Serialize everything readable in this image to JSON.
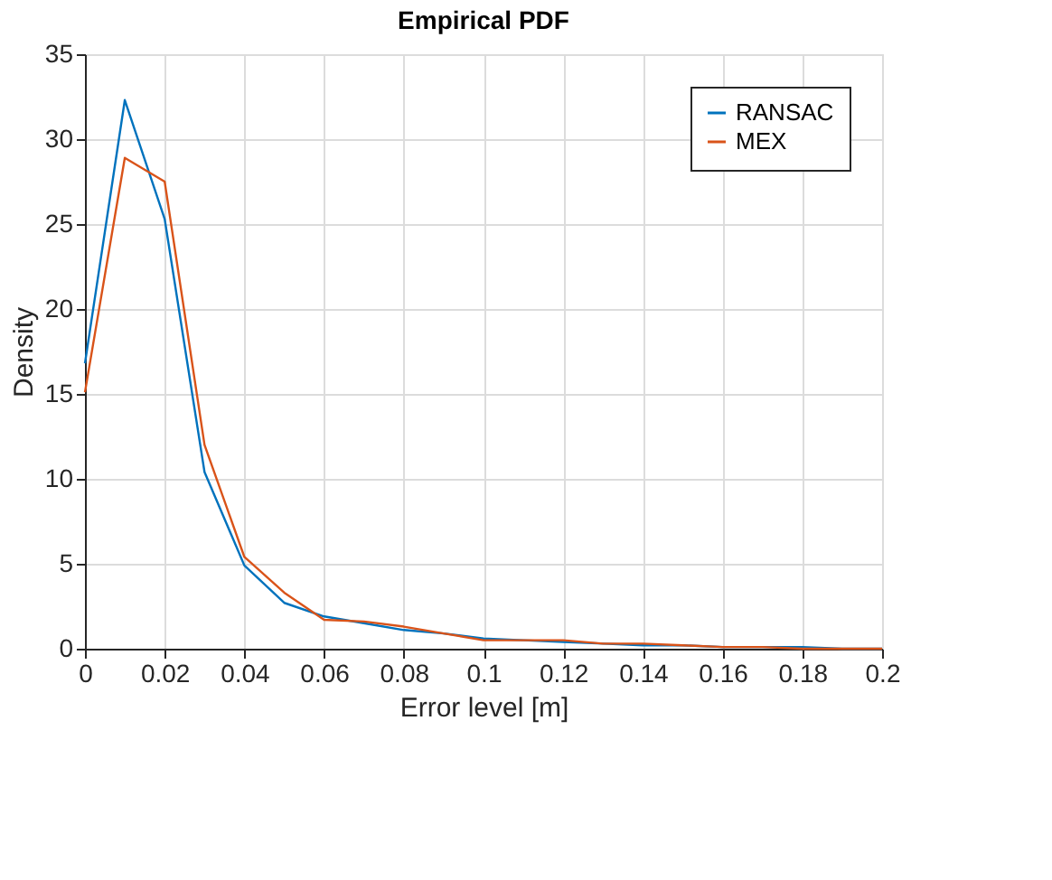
{
  "chart_data": {
    "type": "line",
    "title": "Empirical PDF",
    "xlabel": "Error level [m]",
    "ylabel": "Density",
    "x": [
      0,
      0.01,
      0.02,
      0.03,
      0.04,
      0.05,
      0.06,
      0.07,
      0.08,
      0.09,
      0.1,
      0.11,
      0.12,
      0.13,
      0.14,
      0.15,
      0.16,
      0.17,
      0.18,
      0.19,
      0.2
    ],
    "series": [
      {
        "name": "RANSAC",
        "color": "#0072bd",
        "values": [
          16.8,
          32.3,
          25.3,
          10.4,
          4.9,
          2.7,
          1.9,
          1.5,
          1.1,
          0.9,
          0.6,
          0.5,
          0.4,
          0.3,
          0.2,
          0.2,
          0.1,
          0.1,
          0.1,
          0,
          0
        ]
      },
      {
        "name": "MEX",
        "color": "#d95319",
        "values": [
          15.1,
          28.9,
          27.5,
          12,
          5.4,
          3.3,
          1.7,
          1.6,
          1.3,
          0.9,
          0.5,
          0.5,
          0.5,
          0.3,
          0.3,
          0.2,
          0.1,
          0.1,
          0,
          0,
          0
        ]
      }
    ],
    "xlim": [
      0,
      0.2
    ],
    "xticks": [
      0,
      0.02,
      0.04,
      0.06,
      0.08,
      0.1,
      0.12,
      0.14,
      0.16,
      0.18,
      0.2
    ],
    "ylim": [
      0,
      35
    ],
    "yticks": [
      0,
      5,
      10,
      15,
      20,
      25,
      30,
      35
    ],
    "grid": true,
    "legend": "top right",
    "marker": "none",
    "line_style": "solid"
  }
}
